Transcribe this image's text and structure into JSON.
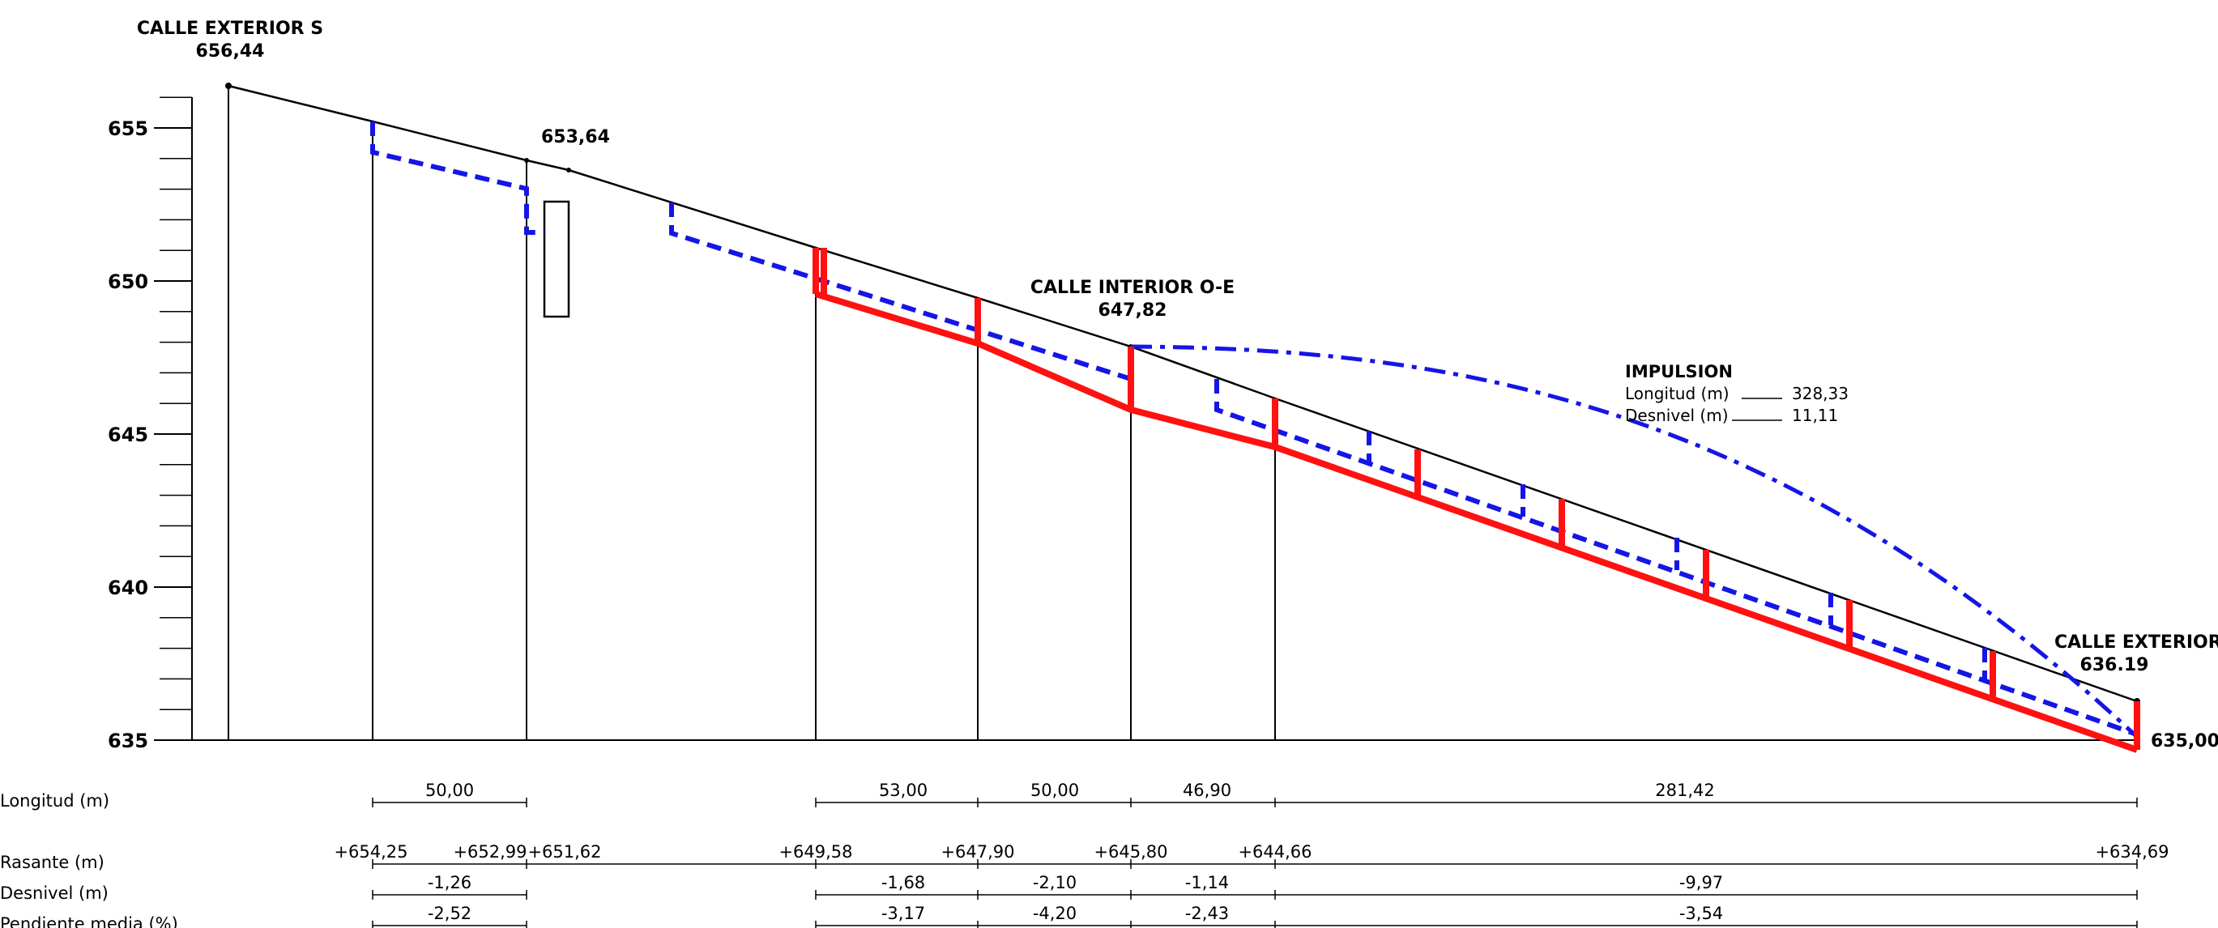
{
  "axis": {
    "ticks": [
      "655",
      "650",
      "645",
      "640",
      "635"
    ]
  },
  "labels": {
    "calle_ext_s": "CALLE EXTERIOR S",
    "calle_ext_s_elev": "656,44",
    "pt_653": "653,64",
    "calle_int": "CALLE INTERIOR O-E",
    "calle_int_elev": "647,82",
    "calle_ext_n": "CALLE EXTERIOR N",
    "calle_ext_n_elev": "636.19",
    "end_elev": "635,00"
  },
  "impulsion": {
    "title": "IMPULSION",
    "longitud_label": "Longitud (m)",
    "longitud_value": "328,33",
    "desnivel_label": "Desnivel (m)",
    "desnivel_value": "11,11"
  },
  "table": {
    "row_labels": {
      "longitud": "Longitud (m)",
      "rasante": "Rasante (m)",
      "desnivel": "Desnivel (m)",
      "pendiente": "Pendiente media (%)"
    },
    "longitud": [
      "50,00",
      "53,00",
      "50,00",
      "46,90",
      "281,42"
    ],
    "rasante": [
      "+654,25",
      "+652,99",
      "+651,62",
      "+649,58",
      "+647,90",
      "+645,80",
      "+644,66",
      "+634,69"
    ],
    "desnivel": [
      "-1,26",
      "-1,68",
      "-2,10",
      "-1,14",
      "-9,97"
    ],
    "pendiente": [
      "-2,52",
      "-3,17",
      "-4,20",
      "-2,43",
      "-3,54"
    ]
  },
  "colors": {
    "ground": "#000000",
    "sewer_blue": "#1515e6",
    "pipe_red": "#ff1111"
  }
}
